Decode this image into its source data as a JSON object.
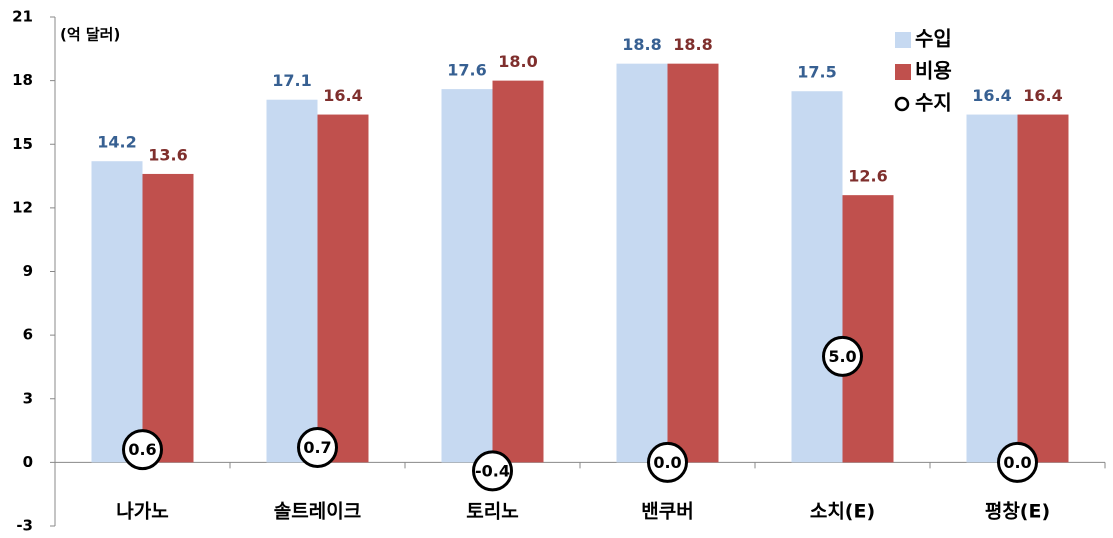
{
  "chart_data": {
    "type": "bar",
    "unit_label": "(억 달러)",
    "categories": [
      "나가노",
      "솔트레이크",
      "토리노",
      "밴쿠버",
      "소치(E)",
      "평창(E)"
    ],
    "series": [
      {
        "name": "수입",
        "color": "#c6d9f1",
        "label_color": "#376092",
        "values": [
          14.2,
          17.1,
          17.6,
          18.8,
          17.5,
          16.4
        ],
        "value_labels": [
          "14.2",
          "17.1",
          "17.6",
          "18.8",
          "17.5",
          "16.4"
        ]
      },
      {
        "name": "비용",
        "color": "#c0504d",
        "label_color": "#7f2f2d",
        "values": [
          13.6,
          16.4,
          18.0,
          18.8,
          12.6,
          16.4
        ],
        "value_labels": [
          "13.6",
          "16.4",
          "18.0",
          "18.8",
          "12.6",
          "16.4"
        ]
      },
      {
        "name": "수지",
        "color": "#000000",
        "marker": "circle",
        "values": [
          0.6,
          0.7,
          -0.4,
          0.0,
          5.0,
          0.0
        ],
        "value_labels": [
          "0.6",
          "0.7",
          "-0.4",
          "0.0",
          "5.0",
          "0.0"
        ]
      }
    ],
    "ylim": [
      -3,
      21
    ],
    "yticks": [
      -3,
      0,
      3,
      6,
      9,
      12,
      15,
      18,
      21
    ],
    "grid": false,
    "legend": "top-right"
  }
}
